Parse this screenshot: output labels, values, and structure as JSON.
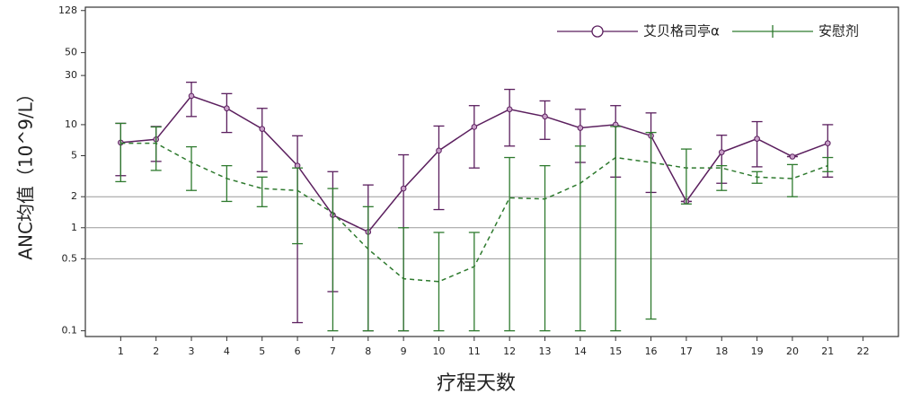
{
  "chart_data": {
    "type": "line",
    "xlabel": "疗程天数",
    "ylabel": "ANC均值（10^9/L）",
    "xlim": [
      0,
      23
    ],
    "xticks": [
      1,
      2,
      3,
      4,
      5,
      6,
      7,
      8,
      9,
      10,
      11,
      12,
      13,
      14,
      15,
      16,
      17,
      18,
      19,
      20,
      21,
      22
    ],
    "ylim": [
      0.088,
      138
    ],
    "yticks": [
      0.1,
      0.5,
      1,
      2,
      5,
      10,
      30,
      50,
      128
    ],
    "ylog": true,
    "hlines": [
      0.5,
      1,
      2
    ],
    "legend": "upper right",
    "x": [
      1,
      2,
      3,
      4,
      5,
      6,
      7,
      8,
      9,
      10,
      11,
      12,
      13,
      14,
      15,
      16,
      17,
      18,
      19,
      20,
      21
    ],
    "series": [
      {
        "name": "艾贝格司亭α",
        "color": "#5b1f5e",
        "marker": "circle",
        "dash": false,
        "values": [
          6.7,
          7.2,
          19,
          14.4,
          9.1,
          4.0,
          1.33,
          0.91,
          2.4,
          5.6,
          9.5,
          14.1,
          12,
          9.3,
          10,
          7.8,
          1.8,
          5.4,
          7.3,
          4.9,
          6.6
        ],
        "lower": [
          3.2,
          4.4,
          12,
          8.4,
          3.5,
          0.12,
          0.24,
          0.1,
          0.1,
          1.5,
          3.8,
          6.2,
          7.2,
          4.3,
          3.1,
          2.2,
          1.8,
          2.7,
          3.9,
          4.9,
          3.1
        ],
        "upper": [
          10.3,
          9.6,
          25.8,
          20,
          14.4,
          7.8,
          3.5,
          2.6,
          5.1,
          9.7,
          15.3,
          22,
          17,
          14.1,
          15.3,
          13,
          1.8,
          7.9,
          10.7,
          4.9,
          10
        ]
      },
      {
        "name": "安慰剂",
        "color": "#2e7a2e",
        "marker": "plus",
        "dash": true,
        "values": [
          6.6,
          6.6,
          4.3,
          3.0,
          2.4,
          2.3,
          1.39,
          0.62,
          0.32,
          0.3,
          0.42,
          1.95,
          1.9,
          2.7,
          4.8,
          4.3,
          3.8,
          3.8,
          3.1,
          3.0,
          4.0
        ],
        "lower": [
          2.8,
          3.6,
          2.3,
          1.8,
          1.6,
          0.7,
          0.1,
          0.1,
          0.1,
          0.1,
          0.1,
          0.1,
          0.1,
          0.1,
          0.1,
          0.13,
          1.7,
          2.3,
          2.7,
          2.0,
          3.5
        ],
        "upper": [
          10.3,
          9.5,
          6.1,
          4.0,
          3.1,
          3.8,
          2.4,
          1.6,
          1.0,
          0.9,
          0.9,
          4.8,
          4.0,
          6.2,
          9.6,
          8.4,
          5.8,
          4.0,
          3.5,
          4.1,
          4.8
        ]
      }
    ]
  }
}
